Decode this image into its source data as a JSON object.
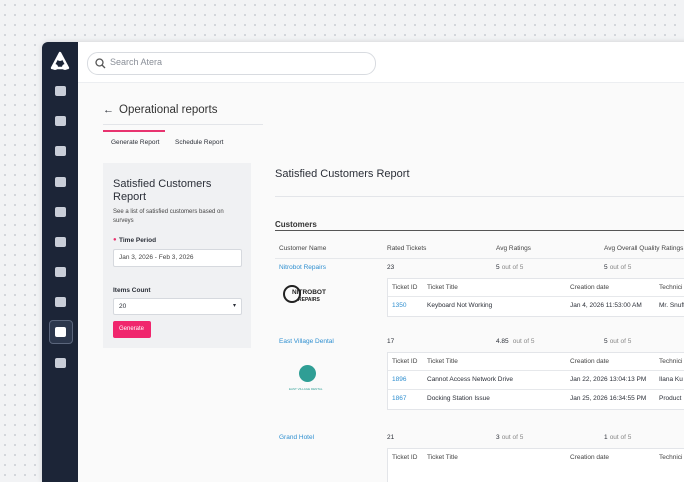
{
  "search_placeholder": "Search Atera",
  "header": {
    "title": "Operational reports"
  },
  "tabs": [
    "Generate Report",
    "Schedule Report"
  ],
  "form": {
    "title": "Satisfied Customers Report",
    "description": "See a list of satisfied customers based on surveys",
    "time_period_label": "Time Period",
    "time_period_value": "Jan 3, 2026 - Feb 3, 2026",
    "items_count_label": "Items Count",
    "items_count_value": "20",
    "button": "Generate"
  },
  "report": {
    "title": "Satisfied Customers Report",
    "section": "Customers",
    "columns": [
      "Customer Name",
      "Rated Tickets",
      "Avg Ratings",
      "Avg Overall Quality Ratings"
    ],
    "ticket_columns": [
      "Ticket ID",
      "Ticket Title",
      "Creation date",
      "Technici"
    ],
    "customers": [
      {
        "name": "Nitrobot Repairs",
        "logo": [
          "NITROBOT",
          "REPAIRS"
        ],
        "rated_tickets": 23,
        "avg_rating": {
          "value": "5",
          "suffix": "out of 5"
        },
        "avg_quality": {
          "value": "5",
          "suffix": "out of 5"
        },
        "tickets": [
          {
            "id": "1350",
            "title": "Keyboard Not Working",
            "date": "Jan 4, 2026 11:53:00 AM",
            "technician": "Mr. Snuff"
          }
        ]
      },
      {
        "name": "East Village Dental",
        "logo": [
          "EAST VILLAGE DENTAL"
        ],
        "rated_tickets": 17,
        "avg_rating": {
          "value": "4.85",
          "suffix": "out of 5"
        },
        "avg_quality": {
          "value": "5",
          "suffix": "out of 5"
        },
        "tickets": [
          {
            "id": "1896",
            "title": "Cannot Access Network Drive",
            "date": "Jan 22, 2026 13:04:13 PM",
            "technician": "Ilana Ku"
          },
          {
            "id": "1867",
            "title": "Docking Station Issue",
            "date": "Jan 25, 2026 16:34:55 PM",
            "technician": "Product"
          }
        ]
      },
      {
        "name": "Grand Hotel",
        "logo": [],
        "rated_tickets": 21,
        "avg_rating": {
          "value": "3",
          "suffix": "out of 5"
        },
        "avg_quality": {
          "value": "1",
          "suffix": "out of 5"
        },
        "tickets": []
      }
    ]
  }
}
